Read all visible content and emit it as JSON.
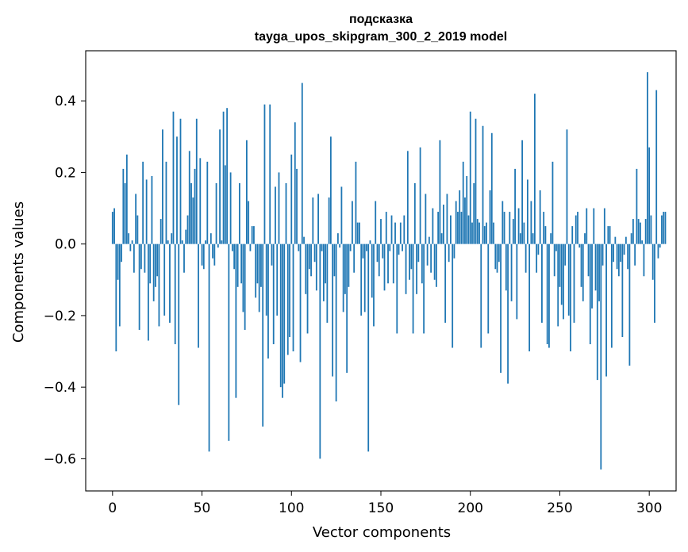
{
  "chart_data": {
    "type": "bar",
    "title_line1": "подсказка",
    "title_line2": "tayga_upos_skipgram_300_2_2019 model",
    "xlabel": "Vector components",
    "ylabel": "Components values",
    "xlim": [
      -15,
      315
    ],
    "ylim": [
      -0.69,
      0.54
    ],
    "xticks": [
      0,
      50,
      100,
      150,
      200,
      250,
      300
    ],
    "xtick_labels": [
      "0",
      "50",
      "100",
      "150",
      "200",
      "250",
      "300"
    ],
    "yticks": [
      -0.6,
      -0.4,
      -0.2,
      0.0,
      0.2,
      0.4
    ],
    "ytick_labels": [
      "−0.6",
      "−0.4",
      "−0.2",
      "0.0",
      "0.2",
      "0.4"
    ],
    "bar_color": "#1f77b4",
    "values": [
      0.09,
      0.1,
      -0.3,
      -0.1,
      -0.23,
      -0.05,
      0.21,
      0.17,
      0.25,
      0.03,
      -0.02,
      0.01,
      -0.08,
      0.14,
      0.08,
      -0.24,
      -0.07,
      0.23,
      -0.08,
      0.18,
      -0.27,
      -0.11,
      0.19,
      -0.16,
      -0.12,
      -0.09,
      -0.23,
      0.07,
      0.32,
      -0.2,
      0.23,
      0.01,
      -0.22,
      0.03,
      0.37,
      -0.28,
      0.3,
      -0.45,
      0.35,
      0.01,
      -0.08,
      0.04,
      0.08,
      0.26,
      0.17,
      0.13,
      0.21,
      0.35,
      -0.29,
      0.24,
      -0.06,
      -0.07,
      0.01,
      0.23,
      -0.58,
      0.03,
      -0.04,
      -0.06,
      0.17,
      -0.01,
      0.32,
      0.01,
      0.37,
      0.22,
      0.38,
      -0.55,
      0.2,
      -0.02,
      -0.07,
      -0.43,
      -0.12,
      0.17,
      -0.11,
      -0.19,
      -0.24,
      0.29,
      0.12,
      -0.02,
      0.05,
      0.05,
      -0.15,
      -0.11,
      -0.19,
      -0.12,
      -0.51,
      0.39,
      -0.2,
      -0.32,
      0.39,
      -0.06,
      -0.28,
      0.16,
      -0.2,
      0.2,
      -0.4,
      -0.43,
      -0.39,
      0.17,
      -0.31,
      -0.26,
      0.25,
      -0.3,
      0.34,
      0.21,
      -0.02,
      -0.33,
      0.45,
      0.02,
      -0.14,
      -0.25,
      -0.07,
      -0.09,
      0.13,
      -0.05,
      -0.13,
      0.14,
      -0.6,
      -0.02,
      -0.16,
      -0.11,
      -0.22,
      0.13,
      0.3,
      -0.37,
      -0.09,
      -0.44,
      0.03,
      -0.01,
      0.16,
      -0.19,
      -0.14,
      -0.36,
      -0.12,
      -0.02,
      0.12,
      -0.08,
      0.23,
      0.06,
      0.06,
      -0.2,
      -0.04,
      -0.19,
      -0.02,
      -0.58,
      0.01,
      -0.15,
      -0.23,
      0.12,
      -0.05,
      -0.09,
      0.07,
      -0.04,
      -0.13,
      0.09,
      -0.11,
      -0.02,
      0.08,
      -0.11,
      0.06,
      -0.25,
      -0.03,
      0.06,
      -0.02,
      0.08,
      -0.14,
      0.26,
      -0.1,
      -0.07,
      -0.25,
      0.17,
      -0.14,
      -0.05,
      0.27,
      -0.11,
      -0.25,
      0.14,
      -0.06,
      0.02,
      -0.08,
      0.1,
      -0.1,
      -0.12,
      0.09,
      0.29,
      0.03,
      0.11,
      -0.22,
      0.14,
      -0.05,
      0.08,
      -0.29,
      -0.04,
      0.12,
      0.09,
      0.15,
      0.09,
      0.23,
      0.13,
      0.19,
      0.08,
      0.37,
      0.06,
      0.17,
      0.35,
      0.07,
      0.06,
      -0.29,
      0.33,
      0.05,
      0.06,
      -0.25,
      0.15,
      0.31,
      0.06,
      -0.07,
      -0.08,
      -0.05,
      -0.36,
      0.12,
      0.09,
      -0.13,
      -0.39,
      0.09,
      -0.16,
      0.07,
      0.21,
      -0.21,
      0.1,
      0.03,
      0.29,
      0.06,
      -0.08,
      0.18,
      -0.3,
      0.12,
      0.03,
      0.42,
      -0.08,
      -0.03,
      0.15,
      -0.22,
      0.09,
      0.05,
      -0.28,
      -0.29,
      0.03,
      0.23,
      -0.09,
      -0.02,
      -0.23,
      -0.12,
      -0.17,
      -0.21,
      -0.06,
      0.32,
      -0.2,
      -0.3,
      0.05,
      -0.22,
      0.08,
      0.09,
      -0.01,
      -0.12,
      -0.16,
      0.03,
      0.1,
      -0.09,
      -0.28,
      -0.18,
      0.1,
      -0.13,
      -0.38,
      -0.16,
      -0.63,
      -0.06,
      0.1,
      -0.37,
      0.05,
      0.05,
      -0.29,
      -0.05,
      0.02,
      -0.07,
      -0.09,
      -0.05,
      -0.26,
      -0.03,
      0.02,
      -0.07,
      -0.34,
      0.03,
      0.07,
      -0.06,
      0.21,
      0.07,
      0.06,
      0.01,
      -0.09,
      0.07,
      0.48,
      0.27,
      0.08,
      -0.1,
      -0.22,
      0.43,
      -0.04,
      -0.01,
      0.08,
      0.09,
      0.09
    ]
  }
}
